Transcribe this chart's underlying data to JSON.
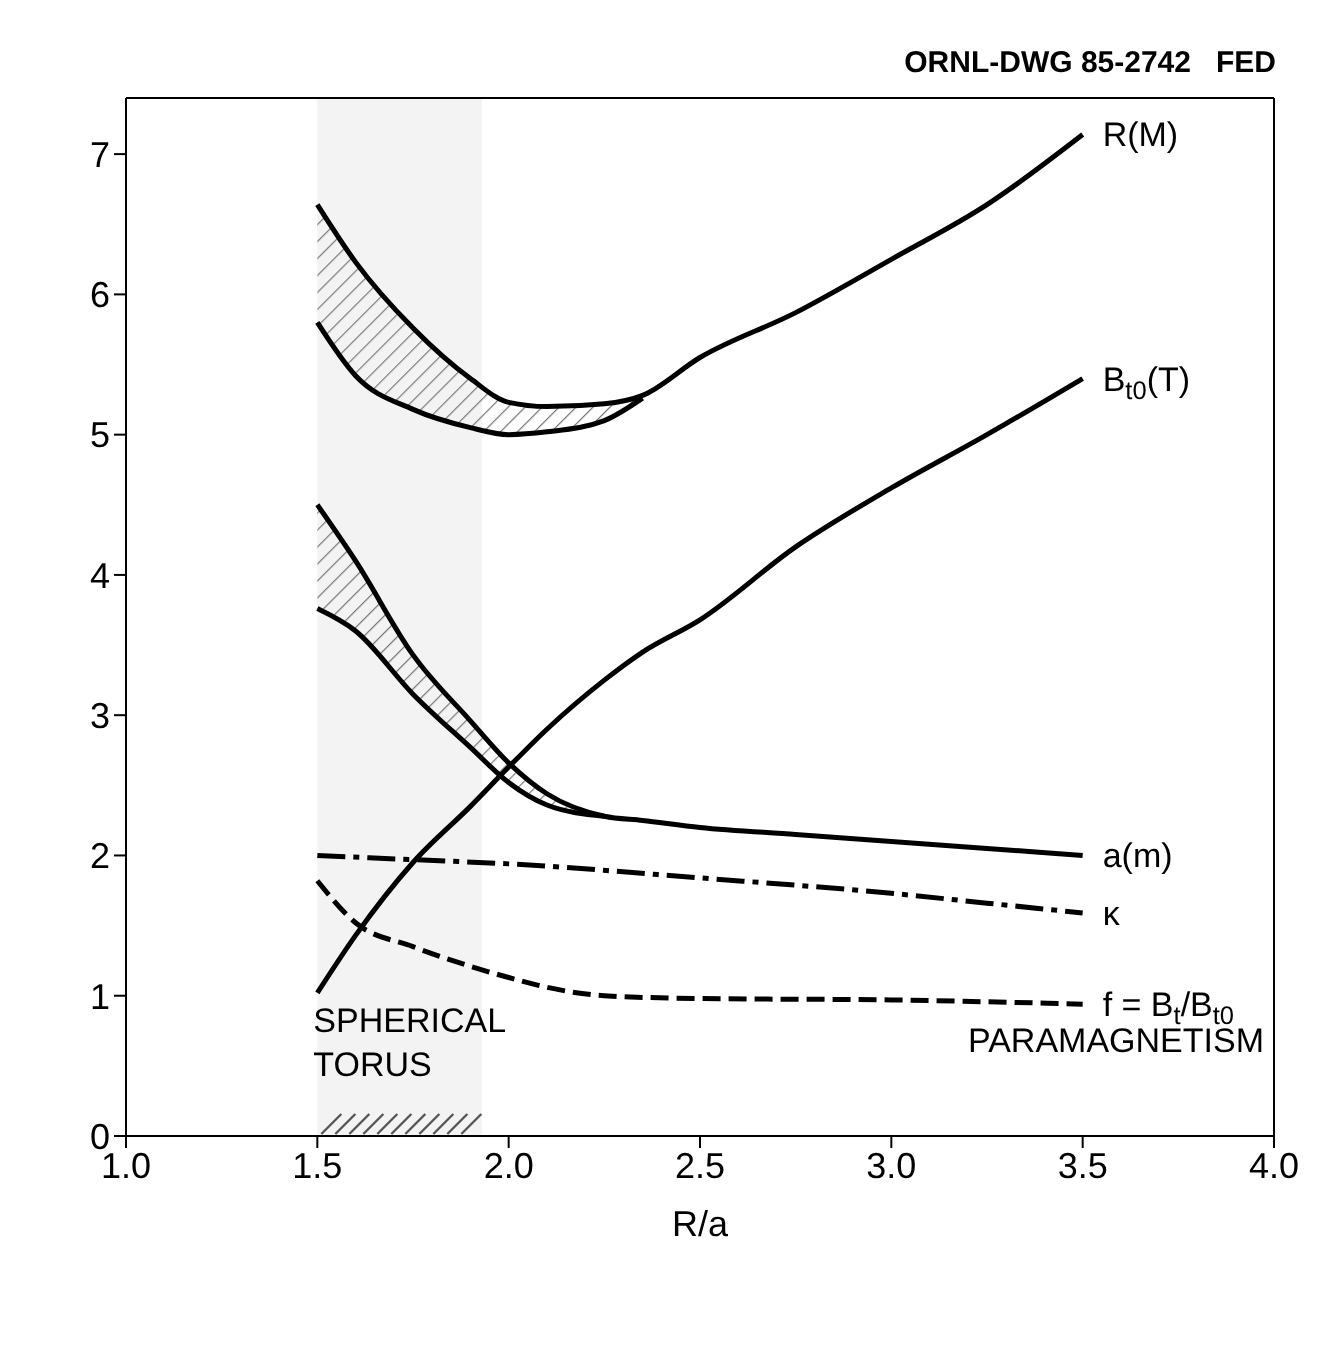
{
  "chart_data": {
    "type": "line",
    "title": "ORNL-DWG 85-2742   FED",
    "xlabel": "R/a",
    "x": [
      1.5,
      1.6,
      1.75,
      1.9,
      2.0,
      2.1,
      2.25,
      2.35,
      2.5,
      2.75,
      3.0,
      3.25,
      3.5
    ],
    "series": [
      {
        "name": "R(M)",
        "color": "#000000",
        "values": [
          6.64,
          6.23,
          5.76,
          5.4,
          5.23,
          5.2,
          5.22,
          5.28,
          5.55,
          5.87,
          6.25,
          6.64,
          7.14
        ],
        "lower": [
          5.8,
          5.42,
          5.18,
          5.05,
          5.0,
          5.02,
          5.1,
          5.26,
          null,
          null,
          null,
          null,
          null
        ],
        "upper": [
          6.64,
          6.23,
          5.76,
          5.4,
          5.23,
          5.2,
          5.22,
          5.28,
          null,
          null,
          null,
          null,
          null
        ]
      },
      {
        "color": "#000000",
        "values": [
          5.8,
          5.42,
          5.18,
          5.05,
          5.0,
          5.02,
          5.1,
          5.26,
          null,
          null,
          null,
          null,
          null
        ]
      },
      {
        "color": "#000000",
        "values": [
          3.76,
          3.6,
          3.15,
          2.77,
          2.52,
          2.36,
          2.28,
          null,
          null,
          null,
          null,
          null,
          null
        ]
      },
      {
        "name": "B$_{t0}$(T)",
        "color": "#000000",
        "values": [
          1.02,
          1.43,
          1.95,
          2.35,
          2.63,
          2.9,
          3.25,
          3.45,
          3.68,
          4.2,
          4.62,
          5.0,
          5.4
        ]
      },
      {
        "name": "a(m)",
        "color": "#000000",
        "values": [
          4.5,
          4.1,
          3.43,
          2.96,
          2.66,
          2.44,
          2.28,
          2.25,
          2.2,
          2.15,
          2.1,
          2.05,
          2.0
        ],
        "lower": [
          3.76,
          3.6,
          3.15,
          2.77,
          2.52,
          2.36,
          2.28,
          null,
          null,
          null,
          null,
          null,
          null
        ],
        "upper": [
          4.5,
          4.1,
          3.43,
          2.96,
          2.66,
          2.44,
          2.28,
          null,
          null,
          null,
          null,
          null,
          null
        ]
      },
      {
        "name": "κ",
        "color": "#000000",
        "line_style": "dashdot",
        "values": [
          2.0,
          null,
          1.97,
          null,
          1.94,
          null,
          null,
          null,
          1.84,
          null,
          1.73,
          1.66,
          1.59
        ]
      },
      {
        "name": "f = B$_{t}$/B$_{t0}$",
        "color": "#000000",
        "line_style": "dashed",
        "values": [
          1.82,
          1.52,
          1.35,
          null,
          1.13,
          1.06,
          1.0,
          null,
          0.98,
          null,
          0.97,
          null,
          0.94
        ]
      }
    ],
    "xlim": [
      1.0,
      4.0
    ],
    "ylim": [
      0,
      7.4
    ],
    "xticks": [
      {
        "value": 1.0,
        "label": "1.0"
      },
      {
        "value": 1.5,
        "label": "1.5"
      },
      {
        "value": 2.0,
        "label": "2.0"
      },
      {
        "value": 2.5,
        "label": "2.5"
      },
      {
        "value": 3.0,
        "label": "3.0"
      },
      {
        "value": 3.5,
        "label": "3.5"
      },
      {
        "value": 4.0,
        "label": "4.0"
      }
    ],
    "yticks": [
      0,
      1,
      2,
      3,
      4,
      5,
      6,
      7
    ],
    "bands": [
      {
        "axis": "x",
        "from": 1.5,
        "to": 1.93,
        "label": "SPHERICAL TORUS"
      }
    ],
    "annotations": [
      "PARAMAGNETISM"
    ],
    "grid": false,
    "legend": false,
    "marker": "none"
  }
}
